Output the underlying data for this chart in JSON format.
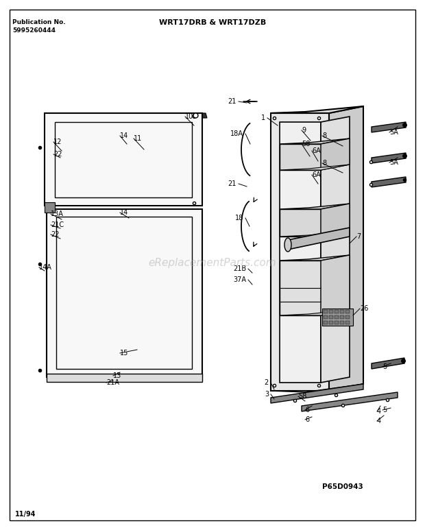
{
  "title": "WRT17DRB & WRT17DZB",
  "pub_no_label": "Publication No.",
  "pub_no": "5995260444",
  "page_id": "P65D0943",
  "date": "11/94",
  "bg_color": "#ffffff",
  "line_color": "#000000",
  "watermark": "eReplacementParts.com",
  "figsize": [
    6.2,
    7.73
  ],
  "dpi": 100
}
